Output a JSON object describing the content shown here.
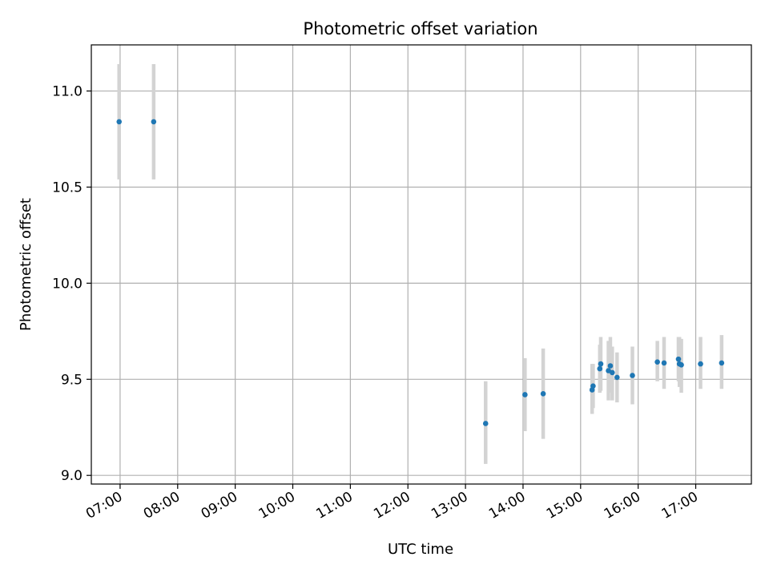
{
  "chart_data": {
    "type": "scatter",
    "title": "Photometric offset variation",
    "xlabel": "UTC time",
    "ylabel": "Photometric offset",
    "grid": true,
    "xlim": [
      "06:30",
      "17:58"
    ],
    "ylim": [
      8.955,
      11.24
    ],
    "x_ticks": [
      "07:00",
      "08:00",
      "09:00",
      "10:00",
      "11:00",
      "12:00",
      "13:00",
      "14:00",
      "15:00",
      "16:00",
      "17:00"
    ],
    "y_ticks": [
      9.0,
      9.5,
      10.0,
      10.5,
      11.0
    ],
    "y_tick_labels": [
      "9.0",
      "9.5",
      "10.0",
      "10.5",
      "11.0"
    ],
    "colors": {
      "point": "#1f77b4",
      "error_bar": "#d3d3d3",
      "grid": "#b0b0b0"
    },
    "points": [
      {
        "time": "06:59",
        "y": 10.84,
        "lo": 10.54,
        "hi": 11.14
      },
      {
        "time": "07:35",
        "y": 10.84,
        "lo": 10.54,
        "hi": 11.14
      },
      {
        "time": "13:21",
        "y": 9.27,
        "lo": 9.06,
        "hi": 9.49
      },
      {
        "time": "14:02",
        "y": 9.42,
        "lo": 9.23,
        "hi": 9.61
      },
      {
        "time": "14:21",
        "y": 9.425,
        "lo": 9.19,
        "hi": 9.66
      },
      {
        "time": "15:12",
        "y": 9.445,
        "lo": 9.32,
        "hi": 9.58
      },
      {
        "time": "15:13",
        "y": 9.465,
        "lo": 9.35,
        "hi": 9.58
      },
      {
        "time": "15:20",
        "y": 9.555,
        "lo": 9.43,
        "hi": 9.68
      },
      {
        "time": "15:21",
        "y": 9.58,
        "lo": 9.44,
        "hi": 9.72
      },
      {
        "time": "15:29",
        "y": 9.545,
        "lo": 9.39,
        "hi": 9.7
      },
      {
        "time": "15:31",
        "y": 9.57,
        "lo": 9.43,
        "hi": 9.72
      },
      {
        "time": "15:33",
        "y": 9.535,
        "lo": 9.39,
        "hi": 9.67
      },
      {
        "time": "15:38",
        "y": 9.51,
        "lo": 9.38,
        "hi": 9.64
      },
      {
        "time": "15:54",
        "y": 9.52,
        "lo": 9.37,
        "hi": 9.67
      },
      {
        "time": "16:20",
        "y": 9.59,
        "lo": 9.49,
        "hi": 9.7
      },
      {
        "time": "16:27",
        "y": 9.585,
        "lo": 9.45,
        "hi": 9.72
      },
      {
        "time": "16:42",
        "y": 9.605,
        "lo": 9.49,
        "hi": 9.72
      },
      {
        "time": "16:43",
        "y": 9.58,
        "lo": 9.46,
        "hi": 9.72
      },
      {
        "time": "16:45",
        "y": 9.575,
        "lo": 9.43,
        "hi": 9.71
      },
      {
        "time": "17:05",
        "y": 9.58,
        "lo": 9.45,
        "hi": 9.72
      },
      {
        "time": "17:27",
        "y": 9.585,
        "lo": 9.45,
        "hi": 9.73
      }
    ]
  }
}
